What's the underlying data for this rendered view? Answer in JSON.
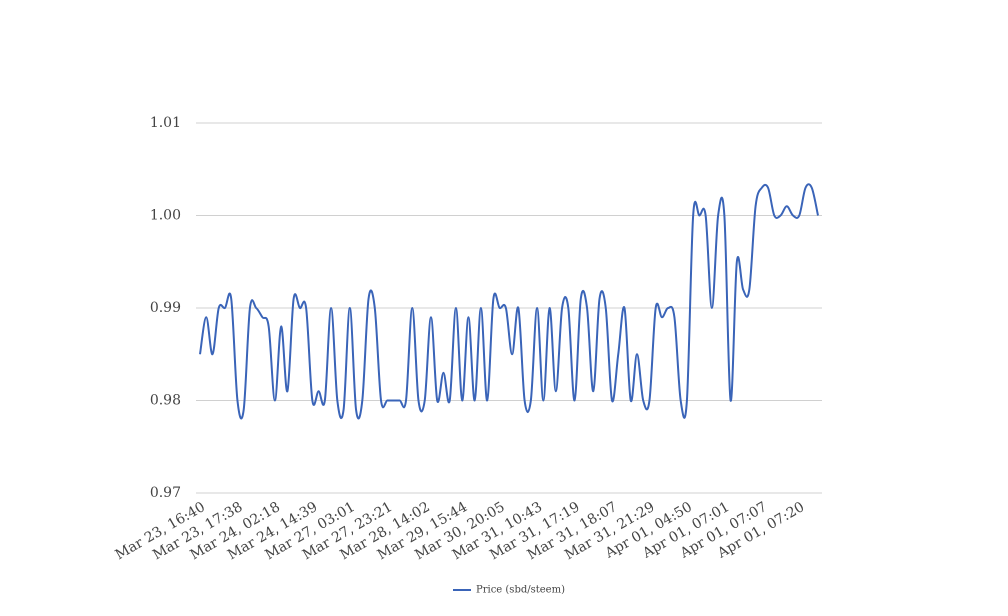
{
  "chart_data": {
    "type": "line",
    "categories": [
      "Mar 23, 16:40",
      null,
      null,
      null,
      null,
      null,
      "Mar 23, 17:38",
      null,
      null,
      null,
      null,
      null,
      "Mar 24, 02:18",
      null,
      null,
      null,
      null,
      null,
      "Mar 24, 14:39",
      null,
      null,
      null,
      null,
      null,
      "Mar 27, 03:01",
      null,
      null,
      null,
      null,
      null,
      "Mar 27, 23:21",
      null,
      null,
      null,
      null,
      null,
      "Mar 28, 14:02",
      null,
      null,
      null,
      null,
      null,
      "Mar 29, 15:44",
      null,
      null,
      null,
      null,
      null,
      "Mar 30, 20:05",
      null,
      null,
      null,
      null,
      null,
      "Mar 31, 10:43",
      null,
      null,
      null,
      null,
      null,
      "Mar 31, 17:19",
      null,
      null,
      null,
      null,
      null,
      "Mar 31, 18:07",
      null,
      null,
      null,
      null,
      null,
      "Mar 31, 21:29",
      null,
      null,
      null,
      null,
      null,
      "Apr 01, 04:50",
      null,
      null,
      null,
      null,
      null,
      "Apr 01, 07:01",
      null,
      null,
      null,
      null,
      null,
      "Apr 01, 07:07",
      null,
      null,
      null,
      null,
      null,
      "Apr 01, 07:20",
      null,
      null,
      null
    ],
    "series": [
      {
        "name": "Price (sbd/steem)",
        "color": "#3a64b8",
        "values": [
          0.985,
          0.989,
          0.985,
          0.99,
          0.99,
          0.991,
          0.98,
          0.979,
          0.99,
          0.99,
          0.989,
          0.988,
          0.98,
          0.988,
          0.981,
          0.991,
          0.99,
          0.99,
          0.98,
          0.981,
          0.98,
          0.99,
          0.98,
          0.979,
          0.99,
          0.979,
          0.98,
          0.991,
          0.99,
          0.98,
          0.98,
          0.98,
          0.98,
          0.98,
          0.99,
          0.98,
          0.98,
          0.989,
          0.98,
          0.983,
          0.98,
          0.99,
          0.98,
          0.989,
          0.98,
          0.99,
          0.98,
          0.991,
          0.99,
          0.99,
          0.985,
          0.99,
          0.98,
          0.98,
          0.99,
          0.98,
          0.99,
          0.981,
          0.99,
          0.99,
          0.98,
          0.991,
          0.99,
          0.981,
          0.991,
          0.99,
          0.98,
          0.985,
          0.99,
          0.98,
          0.985,
          0.98,
          0.98,
          0.99,
          0.989,
          0.99,
          0.989,
          0.98,
          0.98,
          1.0,
          1.0,
          1.0,
          0.99,
          1.0,
          1.0,
          0.98,
          0.995,
          0.992,
          0.992,
          1.001,
          1.003,
          1.003,
          1.0,
          1.0,
          1.001,
          1.0,
          1.0,
          1.003,
          1.003,
          1.0
        ]
      }
    ],
    "ylim": [
      0.97,
      1.01
    ],
    "yticks": [
      0.97,
      0.98,
      0.99,
      {
        "value": 1,
        "label": "1.00"
      },
      1.01
    ],
    "grid": true,
    "legend": "bottom"
  }
}
